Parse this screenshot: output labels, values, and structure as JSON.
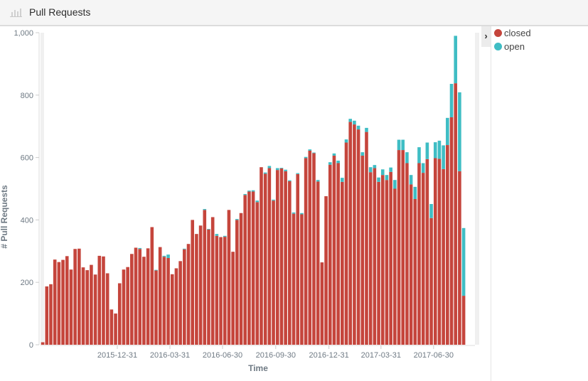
{
  "header": {
    "title": "Pull Requests",
    "icon": "bar-chart-icon"
  },
  "legend": {
    "toggle_icon": "chevron-right-icon",
    "items": [
      {
        "label": "closed",
        "color": "#c5453c"
      },
      {
        "label": "open",
        "color": "#3fbdc4"
      }
    ]
  },
  "chart_data": {
    "type": "bar",
    "stacked": true,
    "xlabel": "Time",
    "ylabel": "# Pull Requests",
    "ylim": [
      0,
      1000
    ],
    "yticks": [
      "0",
      "200",
      "400",
      "600",
      "800",
      "1,000"
    ],
    "ytick_values": [
      0,
      200,
      400,
      600,
      800,
      1000
    ],
    "xticks": [
      "2015-12-31",
      "2016-03-31",
      "2016-06-30",
      "2016-09-30",
      "2016-12-31",
      "2017-03-31",
      "2017-06-30"
    ],
    "legend_position": "right",
    "grid": false,
    "x": [
      "2015-08-24",
      "2015-08-31",
      "2015-09-07",
      "2015-09-14",
      "2015-09-21",
      "2015-09-28",
      "2015-10-05",
      "2015-10-12",
      "2015-10-19",
      "2015-10-26",
      "2015-11-02",
      "2015-11-09",
      "2015-11-16",
      "2015-11-23",
      "2015-11-30",
      "2015-12-07",
      "2015-12-14",
      "2015-12-21",
      "2015-12-28",
      "2016-01-04",
      "2016-01-11",
      "2016-01-18",
      "2016-01-25",
      "2016-02-01",
      "2016-02-08",
      "2016-02-15",
      "2016-02-22",
      "2016-02-29",
      "2016-03-07",
      "2016-03-14",
      "2016-03-21",
      "2016-03-28",
      "2016-04-04",
      "2016-04-11",
      "2016-04-18",
      "2016-04-25",
      "2016-05-02",
      "2016-05-09",
      "2016-05-16",
      "2016-05-23",
      "2016-05-30",
      "2016-06-06",
      "2016-06-13",
      "2016-06-20",
      "2016-06-27",
      "2016-07-04",
      "2016-07-11",
      "2016-07-18",
      "2016-07-25",
      "2016-08-01",
      "2016-08-08",
      "2016-08-15",
      "2016-08-22",
      "2016-08-29",
      "2016-09-05",
      "2016-09-12",
      "2016-09-19",
      "2016-09-26",
      "2016-10-03",
      "2016-10-10",
      "2016-10-17",
      "2016-10-24",
      "2016-10-31",
      "2016-11-07",
      "2016-11-14",
      "2016-11-21",
      "2016-11-28",
      "2016-12-05",
      "2016-12-12",
      "2016-12-19",
      "2016-12-26",
      "2017-01-02",
      "2017-01-09",
      "2017-01-16",
      "2017-01-23",
      "2017-01-30",
      "2017-02-06",
      "2017-02-13",
      "2017-02-20",
      "2017-02-27",
      "2017-03-06",
      "2017-03-13",
      "2017-03-20",
      "2017-03-27",
      "2017-04-03",
      "2017-04-10",
      "2017-04-17",
      "2017-04-24",
      "2017-05-01",
      "2017-05-08",
      "2017-05-15",
      "2017-05-22",
      "2017-05-29",
      "2017-06-05",
      "2017-06-12",
      "2017-06-19",
      "2017-06-26",
      "2017-07-03",
      "2017-07-10",
      "2017-07-17",
      "2017-07-24",
      "2017-07-31",
      "2017-08-07",
      "2017-08-14",
      "2017-08-21"
    ],
    "series": [
      {
        "name": "closed",
        "color": "#c5453c",
        "values": [
          8,
          187,
          194,
          273,
          265,
          272,
          284,
          241,
          307,
          308,
          248,
          239,
          256,
          225,
          285,
          283,
          229,
          113,
          100,
          197,
          241,
          249,
          291,
          311,
          307,
          282,
          309,
          377,
          238,
          313,
          282,
          278,
          226,
          245,
          268,
          306,
          323,
          400,
          355,
          382,
          432,
          370,
          409,
          349,
          345,
          346,
          432,
          298,
          400,
          422,
          480,
          491,
          491,
          457,
          569,
          548,
          566,
          462,
          560,
          565,
          556,
          524,
          420,
          547,
          418,
          598,
          622,
          614,
          523,
          264,
          476,
          577,
          606,
          582,
          522,
          648,
          714,
          706,
          690,
          606,
          682,
          553,
          566,
          522,
          544,
          528,
          554,
          500,
          624,
          624,
          582,
          514,
          467,
          582,
          551,
          595,
          406,
          598,
          596,
          563,
          640,
          729,
          838,
          556,
          157
        ]
      },
      {
        "name": "open",
        "color": "#3fbdc4",
        "values": [
          0,
          0,
          0,
          0,
          0,
          0,
          0,
          0,
          0,
          0,
          0,
          0,
          0,
          0,
          0,
          0,
          0,
          0,
          0,
          0,
          0,
          0,
          0,
          0,
          3,
          0,
          0,
          0,
          2,
          0,
          3,
          11,
          0,
          0,
          0,
          2,
          0,
          0,
          0,
          0,
          3,
          1,
          0,
          6,
          0,
          3,
          0,
          0,
          3,
          0,
          3,
          3,
          4,
          5,
          0,
          4,
          7,
          3,
          6,
          2,
          5,
          3,
          4,
          3,
          4,
          4,
          4,
          2,
          5,
          0,
          0,
          8,
          7,
          8,
          13,
          10,
          10,
          12,
          12,
          11,
          13,
          16,
          10,
          14,
          18,
          16,
          14,
          28,
          33,
          33,
          35,
          30,
          39,
          51,
          31,
          53,
          45,
          51,
          58,
          76,
          87,
          107,
          152,
          253,
          217
        ]
      }
    ]
  }
}
